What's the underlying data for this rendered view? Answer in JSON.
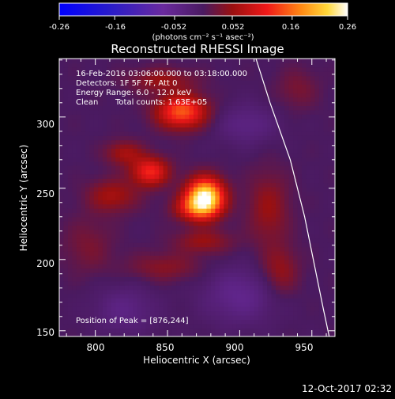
{
  "title": "Reconstructed RHESSI Image",
  "colorbar": {
    "ticks": [
      "-0.26",
      "-0.16",
      "-0.052",
      "0.052",
      "0.16",
      "0.26"
    ],
    "range": [
      -0.26,
      0.26
    ],
    "unit_label": "(photons cm⁻² s⁻¹ asec⁻²)"
  },
  "info": {
    "time": "16-Feb-2016 03:06:00.000 to 03:18:00.000",
    "detectors": "Detectors: 1F 5F 7F, Att 0",
    "energy": "Energy Range: 6.0 - 12.0 keV",
    "clean": "Clean",
    "counts": "Total counts: 1.63E+05"
  },
  "peak_label": "Position of Peak = [876,244]",
  "footer_timestamp": "12-Oct-2017 02:32",
  "chart_data": {
    "type": "heatmap",
    "title": "Reconstructed RHESSI Image",
    "xlabel": "Heliocentric X (arcsec)",
    "ylabel": "Heliocentric Y (arcsec)",
    "xlim": [
      775,
      966
    ],
    "ylim": [
      146,
      341
    ],
    "xticks": [
      800,
      850,
      900,
      950
    ],
    "yticks": [
      150,
      200,
      250,
      300
    ],
    "xtick_labels": [
      "800",
      "850",
      "900",
      "950"
    ],
    "ytick_labels": [
      "150",
      "200",
      "250",
      "300"
    ],
    "peak": [
      876,
      244
    ],
    "sources": [
      {
        "x": 876,
        "y": 244,
        "value": 0.26,
        "sx": 9,
        "sy": 9
      },
      {
        "x": 860,
        "y": 304,
        "value": 0.15,
        "sx": 12,
        "sy": 8
      },
      {
        "x": 838,
        "y": 262,
        "value": 0.12,
        "sx": 9,
        "sy": 7
      },
      {
        "x": 868,
        "y": 236,
        "value": 0.08,
        "sx": 10,
        "sy": 6
      },
      {
        "x": 820,
        "y": 275,
        "value": 0.06,
        "sx": 9,
        "sy": 6
      },
      {
        "x": 846,
        "y": 326,
        "value": 0.05,
        "sx": 16,
        "sy": 6
      },
      {
        "x": 812,
        "y": 245,
        "value": 0.06,
        "sx": 12,
        "sy": 8
      },
      {
        "x": 875,
        "y": 213,
        "value": 0.05,
        "sx": 14,
        "sy": 6
      },
      {
        "x": 848,
        "y": 195,
        "value": 0.04,
        "sx": 18,
        "sy": 7
      },
      {
        "x": 920,
        "y": 236,
        "value": 0.05,
        "sx": 10,
        "sy": 18
      },
      {
        "x": 928,
        "y": 192,
        "value": 0.05,
        "sx": 9,
        "sy": 12
      },
      {
        "x": 795,
        "y": 210,
        "value": 0.03,
        "sx": 12,
        "sy": 14
      },
      {
        "x": 940,
        "y": 320,
        "value": 0.03,
        "sx": 10,
        "sy": 10
      },
      {
        "x": 905,
        "y": 295,
        "value": -0.04,
        "sx": 15,
        "sy": 10
      },
      {
        "x": 900,
        "y": 175,
        "value": -0.05,
        "sx": 18,
        "sy": 14
      },
      {
        "x": 820,
        "y": 165,
        "value": -0.04,
        "sx": 15,
        "sy": 12
      }
    ],
    "limb": {
      "x": [
        910,
        921,
        935,
        945,
        952,
        958,
        962
      ],
      "y": [
        345,
        310,
        270,
        230,
        195,
        165,
        146
      ]
    }
  }
}
